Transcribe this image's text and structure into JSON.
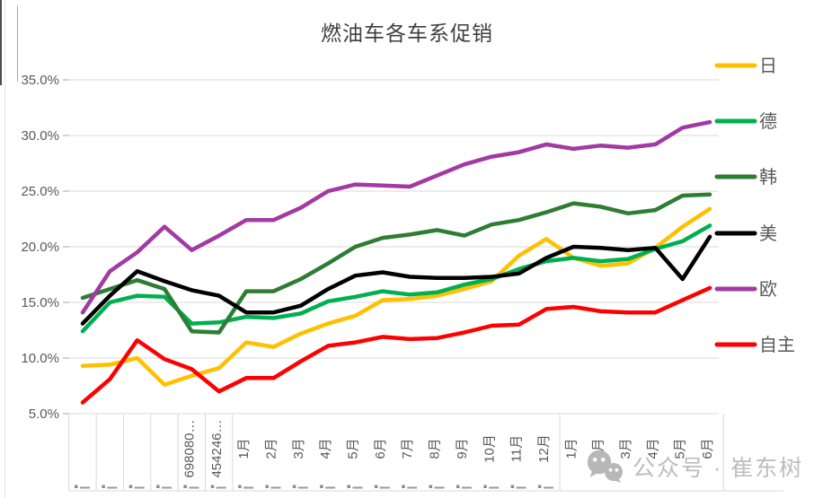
{
  "title": "燃油车各车系促销",
  "watermark": {
    "icon": "wechat-icon",
    "text": "公众号 · 崔东树"
  },
  "chart_data": {
    "type": "line",
    "title": "燃油车各车系促销",
    "grid": true,
    "legend_position": "right",
    "y_axis": {
      "unit": "%",
      "min": 5,
      "max": 35,
      "ticks": [
        "35.0%",
        "30.0%",
        "25.0%",
        "20.0%",
        "15.0%",
        "10.0%",
        "5.0%"
      ],
      "tick_values": [
        35,
        30,
        25,
        20,
        15,
        10,
        5
      ]
    },
    "x_axis": {
      "categories": [
        "",
        "",
        "",
        "",
        "698080…",
        "454246…",
        "1月",
        "2月",
        "3月",
        "4月",
        "5月",
        "6月",
        "7月",
        "8月",
        "9月",
        "10月",
        "11月",
        "12月",
        "1月",
        "2月",
        "3月",
        "4月",
        "5月",
        "6月"
      ],
      "group_divider_after_index": 17,
      "clipped_bottom_row": "partially visible truncated labels cut by image edge"
    },
    "series": [
      {
        "name": "日",
        "key": "japanese",
        "color": "#FFC000",
        "values": [
          9.3,
          9.4,
          10.0,
          7.6,
          8.4,
          9.1,
          11.4,
          11.0,
          12.2,
          13.1,
          13.8,
          15.2,
          15.3,
          15.6,
          16.2,
          16.9,
          19.2,
          20.7,
          19.0,
          18.3,
          18.5,
          19.9,
          21.8,
          23.4
        ]
      },
      {
        "name": "德",
        "key": "german",
        "color": "#00B050",
        "values": [
          12.4,
          15.0,
          15.6,
          15.5,
          13.1,
          13.2,
          13.7,
          13.6,
          14.0,
          15.1,
          15.5,
          16.0,
          15.7,
          15.9,
          16.6,
          17.1,
          18.0,
          18.7,
          19.0,
          18.7,
          18.9,
          19.8,
          20.5,
          21.9
        ]
      },
      {
        "name": "韩",
        "key": "korean",
        "color": "#2E7D32",
        "values": [
          15.4,
          16.2,
          17.0,
          16.2,
          12.4,
          12.3,
          16.0,
          16.0,
          17.1,
          18.5,
          20.0,
          20.8,
          21.1,
          21.5,
          21.0,
          22.0,
          22.4,
          23.1,
          23.9,
          23.6,
          23.0,
          23.3,
          24.6,
          24.7
        ]
      },
      {
        "name": "美",
        "key": "american",
        "color": "#000000",
        "values": [
          13.1,
          15.6,
          17.8,
          16.9,
          16.1,
          15.6,
          14.1,
          14.1,
          14.7,
          16.2,
          17.4,
          17.7,
          17.3,
          17.2,
          17.2,
          17.3,
          17.6,
          19.0,
          20.0,
          19.9,
          19.7,
          19.9,
          17.1,
          20.9
        ]
      },
      {
        "name": "欧",
        "key": "european",
        "color": "#A23AA2",
        "values": [
          14.1,
          17.8,
          19.5,
          21.8,
          19.7,
          21.0,
          22.4,
          22.4,
          23.5,
          25.0,
          25.6,
          25.5,
          25.4,
          26.4,
          27.4,
          28.1,
          28.5,
          29.2,
          28.8,
          29.1,
          28.9,
          29.2,
          30.7,
          31.2
        ]
      },
      {
        "name": "自主",
        "key": "domestic",
        "color": "#FF0000",
        "values": [
          6.0,
          8.1,
          11.6,
          9.9,
          9.0,
          7.0,
          8.2,
          8.2,
          9.7,
          11.1,
          11.4,
          11.9,
          11.7,
          11.8,
          12.3,
          12.9,
          13.0,
          14.4,
          14.6,
          14.2,
          14.1,
          14.1,
          15.2,
          16.3
        ]
      }
    ],
    "colors": {
      "gridline": "#d9d9d9",
      "axis_text": "#595959",
      "title_text": "#3f3f3f",
      "watermark_text": "#bdbdbd"
    }
  }
}
